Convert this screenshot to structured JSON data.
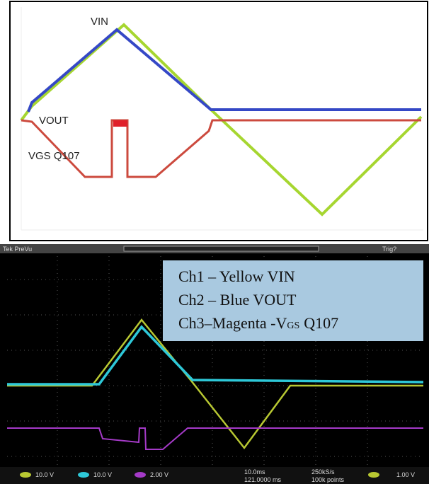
{
  "plot": {
    "labels": [
      "VIN",
      "VOUT",
      "VGS Q107"
    ]
  },
  "scope": {
    "menu": "Tek PreVu",
    "trigger": "Trig?",
    "legend": [
      "Ch1 – Yellow VIN",
      "Ch2 – Blue VOUT",
      {
        "text": "Ch3–Magenta -V",
        "subscript": "GS",
        "suffix": "Q107"
      }
    ],
    "status": {
      "ch1": "10.0 V",
      "ch2": "10.0 V",
      "ch3": "2.00 V",
      "timebase": "10.0ms",
      "position": "121.0000 ms",
      "rate": "250kS/s",
      "points": "100k points",
      "trigger_level": "1.00 V"
    }
  }
}
